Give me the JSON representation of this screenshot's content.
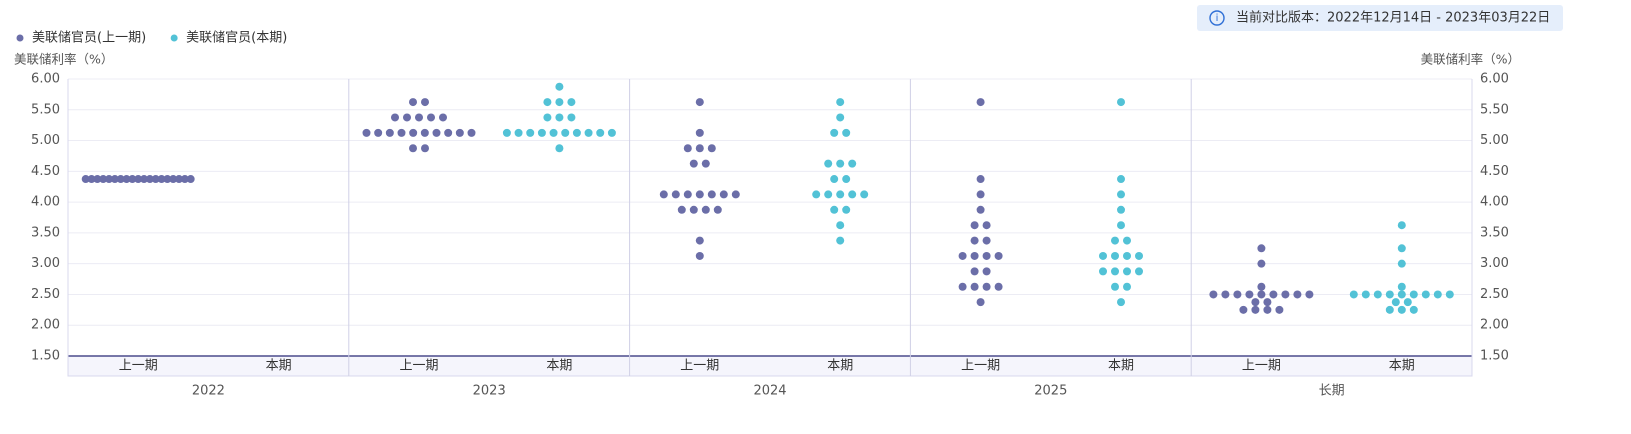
{
  "chart_data": {
    "type": "dot",
    "note": "当前对比版本：2022年12月14日 - 2023年03月22日",
    "y_label": "美联储利率（%）",
    "y2_label": "美联储利率（%）",
    "groups": [
      "2022",
      "2023",
      "2024",
      "2025",
      "长期"
    ],
    "subcategories": [
      "上一期",
      "本期"
    ],
    "ylim": [
      1.5,
      6.0
    ],
    "yticks": [
      {
        "value": 1.5,
        "label": "1.50"
      },
      {
        "value": 2.0,
        "label": "2.00"
      },
      {
        "value": 2.5,
        "label": "2.50"
      },
      {
        "value": 3.0,
        "label": "3.00"
      },
      {
        "value": 3.5,
        "label": "3.50"
      },
      {
        "value": 4.0,
        "label": "4.00"
      },
      {
        "value": 4.5,
        "label": "4.50"
      },
      {
        "value": 5.0,
        "label": "5.00"
      },
      {
        "value": 5.5,
        "label": "5.50"
      },
      {
        "value": 6.0,
        "label": "6.00"
      }
    ],
    "y2lim": [
      1.5,
      6.0
    ],
    "y2ticks": [
      {
        "value": 1.5,
        "label": "1.50"
      },
      {
        "value": 2.0,
        "label": "2.00"
      },
      {
        "value": 2.5,
        "label": "2.50"
      },
      {
        "value": 3.0,
        "label": "3.00"
      },
      {
        "value": 3.5,
        "label": "3.50"
      },
      {
        "value": 4.0,
        "label": "4.00"
      },
      {
        "value": 4.5,
        "label": "4.50"
      },
      {
        "value": 5.0,
        "label": "5.00"
      },
      {
        "value": 5.5,
        "label": "5.50"
      },
      {
        "value": 6.0,
        "label": "6.00"
      }
    ],
    "grid": true,
    "legend": "top-left",
    "series": [
      {
        "name": "美联储官员(上一期)",
        "color": "#6b6ea8",
        "values": [
          [
            4.375,
            4.375,
            4.375,
            4.375,
            4.375,
            4.375,
            4.375,
            4.375,
            4.375,
            4.375,
            4.375,
            4.375,
            4.375,
            4.375,
            4.375,
            4.375,
            4.375,
            4.375,
            4.375
          ],
          [
            5.625,
            5.625,
            5.375,
            5.375,
            5.375,
            5.375,
            5.375,
            5.125,
            5.125,
            5.125,
            5.125,
            5.125,
            5.125,
            5.125,
            5.125,
            5.125,
            5.125,
            4.875,
            4.875
          ],
          [
            5.625,
            5.125,
            4.875,
            4.875,
            4.875,
            4.625,
            4.625,
            4.125,
            4.125,
            4.125,
            4.125,
            4.125,
            4.125,
            4.125,
            3.875,
            3.875,
            3.875,
            3.875,
            3.375,
            3.125
          ],
          [
            5.625,
            4.375,
            4.125,
            3.875,
            3.625,
            3.625,
            3.375,
            3.375,
            3.125,
            3.125,
            3.125,
            3.125,
            2.875,
            2.875,
            2.625,
            2.625,
            2.625,
            2.625,
            2.375
          ],
          [
            3.25,
            3.0,
            2.625,
            2.5,
            2.5,
            2.5,
            2.5,
            2.5,
            2.5,
            2.5,
            2.5,
            2.5,
            2.375,
            2.375,
            2.25,
            2.25,
            2.25,
            2.25
          ]
        ]
      },
      {
        "name": "美联储官员(本期)",
        "color": "#52c2d6",
        "values": [
          [],
          [
            5.875,
            5.625,
            5.625,
            5.625,
            5.375,
            5.375,
            5.375,
            5.125,
            5.125,
            5.125,
            5.125,
            5.125,
            5.125,
            5.125,
            5.125,
            5.125,
            5.125,
            4.875
          ],
          [
            5.625,
            5.375,
            5.125,
            5.125,
            4.625,
            4.625,
            4.625,
            4.375,
            4.375,
            4.125,
            4.125,
            4.125,
            4.125,
            4.125,
            3.875,
            3.875,
            3.625,
            3.375
          ],
          [
            5.625,
            4.375,
            4.125,
            3.875,
            3.625,
            3.375,
            3.375,
            3.125,
            3.125,
            3.125,
            3.125,
            2.875,
            2.875,
            2.875,
            2.875,
            2.625,
            2.625,
            2.375
          ],
          [
            3.625,
            3.25,
            3.0,
            2.625,
            2.5,
            2.5,
            2.5,
            2.5,
            2.5,
            2.5,
            2.5,
            2.5,
            2.5,
            2.375,
            2.375,
            2.25,
            2.25,
            2.25
          ]
        ]
      }
    ]
  }
}
